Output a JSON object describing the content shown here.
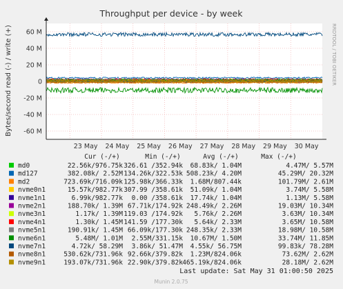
{
  "chart_data": {
    "type": "line",
    "title": "Throughput per device - by week",
    "ylabel": "Bytes/second read (-) / write (+)",
    "side_label": "RRDTOOL / TOBI OETIKER",
    "x_ticks": [
      "23 May",
      "24 May",
      "25 May",
      "26 May",
      "27 May",
      "28 May",
      "29 May",
      "30 May"
    ],
    "y_ticks": [
      "60 M",
      "40 M",
      "20 M",
      "0",
      "-20 M",
      "-40 M",
      "-60 M"
    ],
    "ylim": [
      -70000000,
      70000000
    ],
    "grid": true,
    "columns": [
      "Cur (-/+)",
      "Min (-/+)",
      "Avg (-/+)",
      "Max (-/+)"
    ],
    "series": [
      {
        "name": "md0",
        "color": "#00cc00",
        "cur": "22.56k/976.75k",
        "min": "326.61 /352.94k",
        "avg": "68.83k/  1.04M",
        "max": "4.47M/  5.57M"
      },
      {
        "name": "md127",
        "color": "#0066b3",
        "cur": "382.08k/  2.52M",
        "min": "134.26k/322.53k",
        "avg": "508.23k/  4.20M",
        "max": "45.29M/ 20.32M"
      },
      {
        "name": "md2",
        "color": "#ff8000",
        "cur": "723.69k/716.09k",
        "min": "125.98k/366.33k",
        "avg": "1.68M/807.44k",
        "max": "101.79M/  2.61M"
      },
      {
        "name": "nvme0n1",
        "color": "#ffcc00",
        "cur": "15.57k/982.77k",
        "min": "307.99 /358.61k",
        "avg": "51.09k/  1.04M",
        "max": "3.74M/  5.58M"
      },
      {
        "name": "nvme1n1",
        "color": "#330099",
        "cur": "6.99k/982.77k",
        "min": "0.00 /358.61k",
        "avg": "17.74k/  1.04M",
        "max": "1.13M/  5.58M"
      },
      {
        "name": "nvme2n1",
        "color": "#990099",
        "cur": "188.70k/  1.39M",
        "min": "67.71k/174.92k",
        "avg": "248.49k/  2.26M",
        "max": "19.03M/ 10.34M"
      },
      {
        "name": "nvme3n1",
        "color": "#ccff00",
        "cur": "1.17k/  1.39M",
        "min": "119.03 /174.92k",
        "avg": "5.76k/  2.26M",
        "max": "3.63M/ 10.34M"
      },
      {
        "name": "nvme4n1",
        "color": "#ff0000",
        "cur": "1.30k/  1.45M",
        "min": "141.59 /177.30k",
        "avg": "5.64k/  2.33M",
        "max": "3.65M/ 10.58M"
      },
      {
        "name": "nvme5n1",
        "color": "#808080",
        "cur": "190.91k/  1.45M",
        "min": "66.09k/177.30k",
        "avg": "248.35k/  2.33M",
        "max": "18.98M/ 10.58M"
      },
      {
        "name": "nvme6n1",
        "color": "#008f00",
        "cur": "5.48M/  1.01M",
        "min": "2.55M/331.15k",
        "avg": "10.67M/  1.50M",
        "max": "33.74M/ 11.85M"
      },
      {
        "name": "nvme7n1",
        "color": "#00487d",
        "cur": "4.72k/ 58.29M",
        "min": "3.86k/ 51.47M",
        "avg": "4.55k/ 56.75M",
        "max": "99.83k/ 78.28M"
      },
      {
        "name": "nvme8n1",
        "color": "#b35a00",
        "cur": "530.62k/731.96k",
        "min": "92.66k/379.82k",
        "avg": "1.23M/824.06k",
        "max": "73.62M/  2.62M"
      },
      {
        "name": "nvme9n1",
        "color": "#b38f00",
        "cur": "193.07k/731.96k",
        "min": "22.90k/379.82k",
        "avg": "465.19k/824.06k",
        "max": "28.18M/  2.62M"
      }
    ],
    "last_update": "Last update:  Sat May 31 01:00:50 2025",
    "footer": "Munin 2.0.75"
  }
}
